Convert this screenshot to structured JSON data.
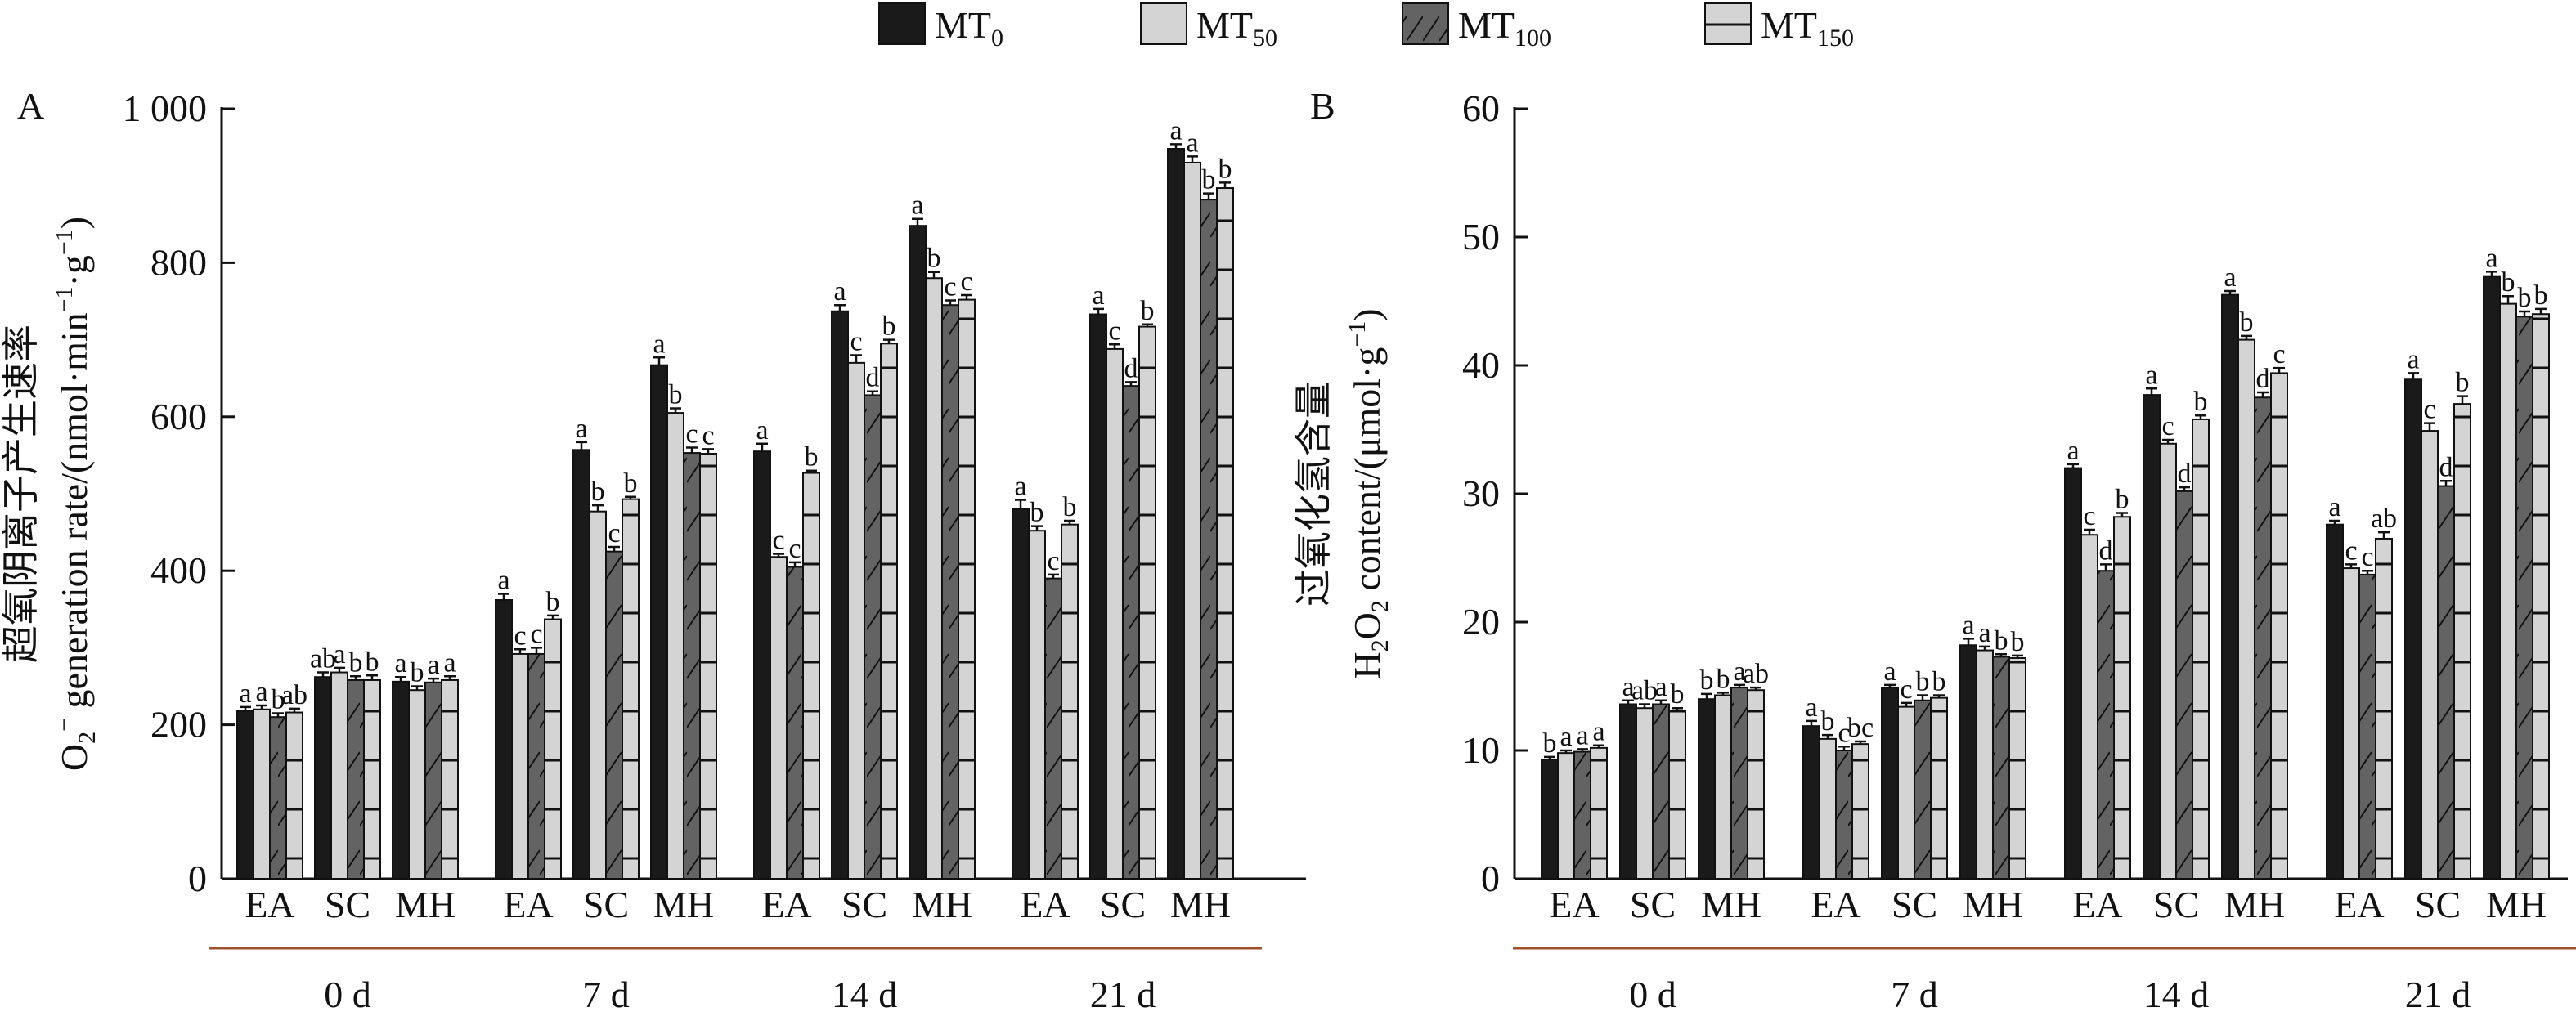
{
  "legend": [
    {
      "name": "MT",
      "sub": "0",
      "color": "#1a1a1a",
      "pattern": "solid"
    },
    {
      "name": "MT",
      "sub": "50",
      "color": "#d4d4d4",
      "pattern": "solid"
    },
    {
      "name": "MT",
      "sub": "100",
      "color": "#636363",
      "pattern": "diagonal"
    },
    {
      "name": "MT",
      "sub": "150",
      "color": "#d4d4d4",
      "pattern": "horizontal"
    }
  ],
  "colors": {
    "axis": "#111111",
    "group_underline": "#a0522d"
  },
  "chart_data": [
    {
      "type": "bar",
      "panel_label": "A",
      "ylabel_cn": "超氧阴离子产生速率",
      "ylabel_en": {
        "pre": "O",
        "sub": "2",
        "sup": "−",
        "post": " generation rate/(nmol·min",
        "unit_sup1": "−1",
        "mid": "·g",
        "unit_sup2": "−1",
        "end": ")"
      },
      "ylim": [
        0,
        1000
      ],
      "yticks": [
        0,
        200,
        400,
        600,
        800,
        1000
      ],
      "ytick_labels": [
        "0",
        "200",
        "400",
        "600",
        "800",
        "1 000"
      ],
      "groups": [
        "0 d",
        "7 d",
        "14 d",
        "21 d"
      ],
      "categories": [
        "EA",
        "SC",
        "MH"
      ],
      "series_names": [
        "MT0",
        "MT50",
        "MT100",
        "MT150"
      ],
      "values": [
        [
          [
            218,
            220,
            210,
            216
          ],
          [
            262,
            268,
            258,
            258
          ],
          [
            256,
            245,
            255,
            258
          ]
        ],
        [
          [
            362,
            292,
            292,
            337
          ],
          [
            557,
            477,
            425,
            493
          ],
          [
            667,
            605,
            553,
            552
          ]
        ],
        [
          [
            555,
            418,
            405,
            527
          ],
          [
            737,
            670,
            628,
            695
          ],
          [
            848,
            780,
            745,
            752
          ]
        ],
        [
          [
            480,
            452,
            390,
            460
          ],
          [
            733,
            688,
            640,
            717
          ],
          [
            948,
            930,
            882,
            897
          ]
        ]
      ],
      "errors": [
        [
          [
            5,
            5,
            5,
            5
          ],
          [
            6,
            6,
            5,
            6
          ],
          [
            6,
            5,
            5,
            5
          ]
        ],
        [
          [
            8,
            6,
            8,
            5
          ],
          [
            10,
            8,
            6,
            3
          ],
          [
            10,
            6,
            7,
            6
          ]
        ],
        [
          [
            10,
            4,
            6,
            3
          ],
          [
            8,
            10,
            5,
            5
          ],
          [
            9,
            8,
            6,
            6
          ]
        ],
        [
          [
            12,
            6,
            5,
            5
          ],
          [
            7,
            6,
            5,
            3
          ],
          [
            6,
            8,
            8,
            7
          ]
        ]
      ],
      "letters": [
        [
          [
            "a",
            "a",
            "b",
            "ab"
          ],
          [
            "ab",
            "a",
            "b",
            "b"
          ],
          [
            "a",
            "b",
            "a",
            "a"
          ]
        ],
        [
          [
            "a",
            "c",
            "c",
            "b"
          ],
          [
            "a",
            "b",
            "c",
            "b"
          ],
          [
            "a",
            "b",
            "c",
            "c"
          ]
        ],
        [
          [
            "a",
            "c",
            "c",
            "b"
          ],
          [
            "a",
            "c",
            "d",
            "b"
          ],
          [
            "a",
            "b",
            "c",
            "c"
          ]
        ],
        [
          [
            "a",
            "b",
            "c",
            "b"
          ],
          [
            "a",
            "c",
            "d",
            "b"
          ],
          [
            "a",
            "a",
            "b",
            "b"
          ]
        ]
      ]
    },
    {
      "type": "bar",
      "panel_label": "B",
      "ylabel_cn": "过氧化氢含量",
      "ylabel_en": {
        "pre": "H",
        "sub": "2",
        "mid0": "O",
        "sub2": "2",
        "post": " content/(μmol·g",
        "unit_sup": "−1",
        "end": ")"
      },
      "ylim": [
        0,
        60
      ],
      "yticks": [
        0,
        10,
        20,
        30,
        40,
        50,
        60
      ],
      "ytick_labels": [
        "0",
        "10",
        "20",
        "30",
        "40",
        "50",
        "60"
      ],
      "groups": [
        "0 d",
        "7 d",
        "14 d",
        "21 d"
      ],
      "categories": [
        "EA",
        "SC",
        "MH"
      ],
      "series_names": [
        "MT0",
        "MT50",
        "MT100",
        "MT150"
      ],
      "values": [
        [
          [
            9.3,
            9.8,
            9.9,
            10.2
          ],
          [
            13.6,
            13.3,
            13.6,
            13.1
          ],
          [
            14.0,
            14.3,
            14.9,
            14.7
          ]
        ],
        [
          [
            11.9,
            10.9,
            10.0,
            10.5
          ],
          [
            14.9,
            13.4,
            13.9,
            14.1
          ],
          [
            18.2,
            17.8,
            17.3,
            17.2
          ]
        ],
        [
          [
            32.0,
            26.8,
            24.0,
            28.2
          ],
          [
            37.7,
            33.9,
            30.2,
            35.8
          ],
          [
            45.5,
            42.0,
            37.5,
            39.4
          ]
        ],
        [
          [
            27.6,
            24.2,
            23.7,
            26.5
          ],
          [
            38.9,
            34.9,
            30.6,
            37.0
          ],
          [
            46.9,
            44.8,
            43.8,
            44.0
          ]
        ]
      ],
      "errors": [
        [
          [
            0.2,
            0.2,
            0.2,
            0.2
          ],
          [
            0.3,
            0.3,
            0.3,
            0.2
          ],
          [
            0.4,
            0.2,
            0.2,
            0.2
          ]
        ],
        [
          [
            0.4,
            0.3,
            0.3,
            0.2
          ],
          [
            0.2,
            0.3,
            0.4,
            0.2
          ],
          [
            0.5,
            0.3,
            0.2,
            0.2
          ]
        ],
        [
          [
            0.3,
            0.4,
            0.5,
            0.3
          ],
          [
            0.5,
            0.3,
            0.3,
            0.3
          ],
          [
            0.3,
            0.3,
            0.4,
            0.4
          ]
        ],
        [
          [
            0.3,
            0.3,
            0.3,
            0.5
          ],
          [
            0.5,
            0.6,
            0.4,
            0.6
          ],
          [
            0.4,
            0.6,
            0.4,
            0.4
          ]
        ]
      ],
      "letters": [
        [
          [
            "b",
            "a",
            "a",
            "a"
          ],
          [
            "a",
            "ab",
            "a",
            "b"
          ],
          [
            "b",
            "b",
            "a",
            "ab"
          ]
        ],
        [
          [
            "a",
            "b",
            "c",
            "bc"
          ],
          [
            "a",
            "c",
            "b",
            "b"
          ],
          [
            "a",
            "a",
            "b",
            "b"
          ]
        ],
        [
          [
            "a",
            "c",
            "d",
            "b"
          ],
          [
            "a",
            "c",
            "d",
            "b"
          ],
          [
            "a",
            "b",
            "d",
            "c"
          ]
        ],
        [
          [
            "a",
            "c",
            "c",
            "ab"
          ],
          [
            "a",
            "c",
            "d",
            "b"
          ],
          [
            "a",
            "b",
            "b",
            "b"
          ]
        ]
      ]
    }
  ]
}
